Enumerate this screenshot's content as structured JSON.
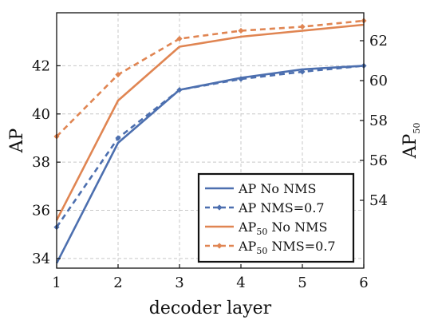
{
  "chart_data": {
    "type": "line",
    "x": [
      1,
      2,
      3,
      4,
      5,
      6
    ],
    "xlabel": "decoder layer",
    "ylabel_left": {
      "main": "AP",
      "sub": ""
    },
    "ylabel_right": {
      "main": "AP",
      "sub": "50"
    },
    "xlim": [
      1,
      6
    ],
    "ylim_left": [
      33.6,
      44.2
    ],
    "ylim_right": [
      50.6,
      63.4
    ],
    "yticks_left": [
      34,
      36,
      38,
      40,
      42
    ],
    "yticks_right": [
      54,
      56,
      58,
      60,
      62
    ],
    "xticks": [
      1,
      2,
      3,
      4,
      5,
      6
    ],
    "grid": true,
    "legend_position": "bottom-right",
    "series": [
      {
        "name": "AP No NMS",
        "name_main": "AP",
        "name_sub": "",
        "name_rest": " No NMS",
        "axis": "left",
        "style": "solid",
        "color": "#4c6faf",
        "values": [
          33.8,
          38.8,
          41.0,
          41.5,
          41.85,
          42.0
        ]
      },
      {
        "name": "AP NMS=0.7",
        "name_main": "AP",
        "name_sub": "",
        "name_rest": " NMS=0.7",
        "axis": "left",
        "style": "dashed",
        "color": "#4c6faf",
        "values": [
          35.3,
          39.0,
          41.0,
          41.45,
          41.75,
          42.0
        ]
      },
      {
        "name": "AP50 No NMS",
        "name_main": "AP",
        "name_sub": "50",
        "name_rest": " No NMS",
        "axis": "right",
        "style": "solid",
        "color": "#e08552",
        "values": [
          53.0,
          59.0,
          61.7,
          62.2,
          62.5,
          62.8
        ]
      },
      {
        "name": "AP50 NMS=0.7",
        "name_main": "AP",
        "name_sub": "50",
        "name_rest": " NMS=0.7",
        "axis": "right",
        "style": "dashed",
        "color": "#e08552",
        "values": [
          57.2,
          60.3,
          62.1,
          62.5,
          62.7,
          63.0
        ]
      }
    ]
  }
}
